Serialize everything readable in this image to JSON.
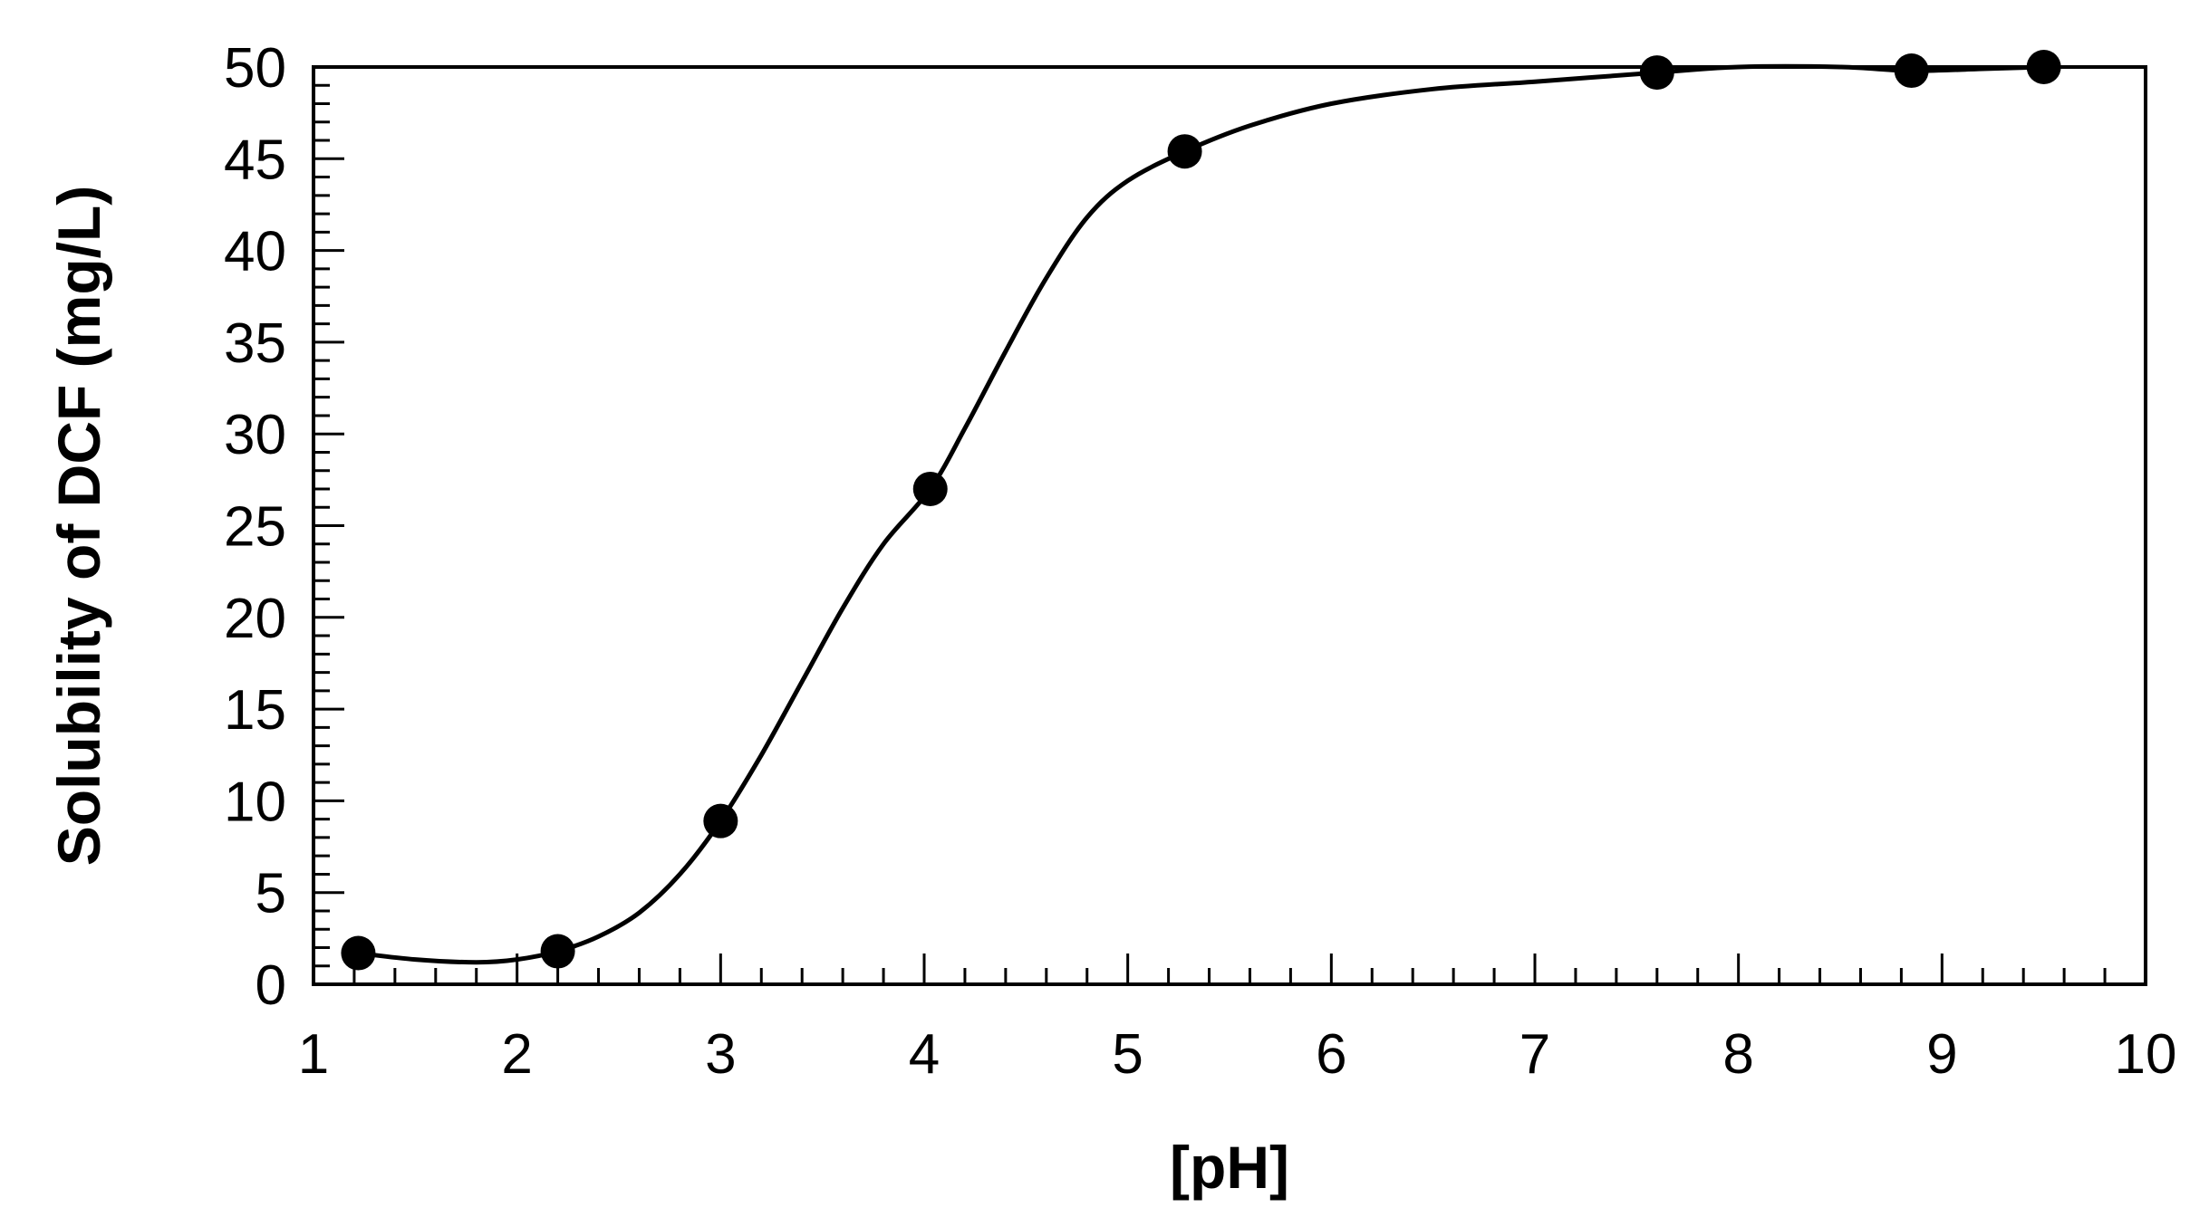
{
  "chart_data": {
    "type": "scatter",
    "title": "",
    "xlabel": "[pH]",
    "ylabel": "Solubility of DCF (mg/L)",
    "xlim": [
      1,
      10
    ],
    "ylim": [
      0,
      50
    ],
    "x_major_ticks": [
      1,
      2,
      3,
      4,
      5,
      6,
      7,
      8,
      9,
      10
    ],
    "y_major_ticks": [
      0,
      5,
      10,
      15,
      20,
      25,
      30,
      35,
      40,
      45,
      50
    ],
    "x_minor_step": 0.2,
    "y_minor_step": 1,
    "grid": false,
    "legend": "none",
    "series": [
      {
        "points": [
          {
            "x": 1.22,
            "y": 1.7
          },
          {
            "x": 2.2,
            "y": 1.8
          },
          {
            "x": 3.0,
            "y": 8.9
          },
          {
            "x": 4.03,
            "y": 27.0
          },
          {
            "x": 5.28,
            "y": 45.4
          },
          {
            "x": 7.6,
            "y": 49.7
          },
          {
            "x": 8.85,
            "y": 49.8
          },
          {
            "x": 9.5,
            "y": 50.0
          }
        ],
        "marker": "filled-circle",
        "color": "#000000"
      }
    ],
    "fit_curve": [
      [
        1.22,
        1.7
      ],
      [
        1.5,
        1.35
      ],
      [
        1.8,
        1.2
      ],
      [
        2.0,
        1.35
      ],
      [
        2.2,
        1.8
      ],
      [
        2.4,
        2.6
      ],
      [
        2.6,
        3.9
      ],
      [
        2.8,
        6.0
      ],
      [
        3.0,
        8.9
      ],
      [
        3.2,
        12.5
      ],
      [
        3.4,
        16.5
      ],
      [
        3.6,
        20.5
      ],
      [
        3.8,
        24.0
      ],
      [
        4.03,
        27.0
      ],
      [
        4.2,
        30.3
      ],
      [
        4.4,
        34.5
      ],
      [
        4.6,
        38.5
      ],
      [
        4.8,
        41.8
      ],
      [
        5.0,
        43.8
      ],
      [
        5.28,
        45.4
      ],
      [
        5.6,
        46.8
      ],
      [
        6.0,
        48.0
      ],
      [
        6.5,
        48.8
      ],
      [
        7.0,
        49.2
      ],
      [
        7.6,
        49.7
      ],
      [
        8.0,
        50.0
      ],
      [
        8.5,
        50.0
      ],
      [
        8.85,
        49.8
      ],
      [
        9.2,
        49.9
      ],
      [
        9.5,
        50.0
      ]
    ]
  }
}
